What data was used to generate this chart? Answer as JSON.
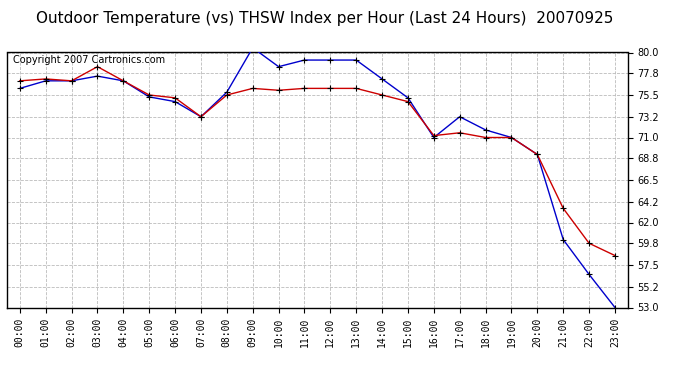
{
  "title": "Outdoor Temperature (vs) THSW Index per Hour (Last 24 Hours)  20070925",
  "copyright": "Copyright 2007 Cartronics.com",
  "hours": [
    "00:00",
    "01:00",
    "02:00",
    "03:00",
    "04:00",
    "05:00",
    "06:00",
    "07:00",
    "08:00",
    "09:00",
    "10:00",
    "11:00",
    "12:00",
    "13:00",
    "14:00",
    "15:00",
    "16:00",
    "17:00",
    "18:00",
    "19:00",
    "20:00",
    "21:00",
    "22:00",
    "23:00"
  ],
  "temp_red": [
    77.0,
    77.2,
    77.0,
    78.5,
    77.0,
    75.5,
    75.2,
    73.2,
    75.5,
    76.2,
    76.0,
    76.2,
    76.2,
    76.2,
    75.5,
    74.8,
    71.2,
    71.5,
    71.0,
    71.0,
    69.2,
    63.5,
    59.8,
    58.5
  ],
  "thsw_blue": [
    76.2,
    77.0,
    77.0,
    77.5,
    77.0,
    75.3,
    74.8,
    73.2,
    75.8,
    80.5,
    78.5,
    79.2,
    79.2,
    79.2,
    77.2,
    75.2,
    71.0,
    73.2,
    71.8,
    71.0,
    69.2,
    60.2,
    56.5,
    53.0
  ],
  "red_color": "#cc0000",
  "blue_color": "#0000cc",
  "bg_color": "#ffffff",
  "grid_color": "#bbbbbb",
  "ylim_min": 53.0,
  "ylim_max": 80.0,
  "yticks": [
    53.0,
    55.2,
    57.5,
    59.8,
    62.0,
    64.2,
    66.5,
    68.8,
    71.0,
    73.2,
    75.5,
    77.8,
    80.0
  ],
  "title_fontsize": 11,
  "copyright_fontsize": 7,
  "tick_fontsize": 7,
  "marker": "+"
}
